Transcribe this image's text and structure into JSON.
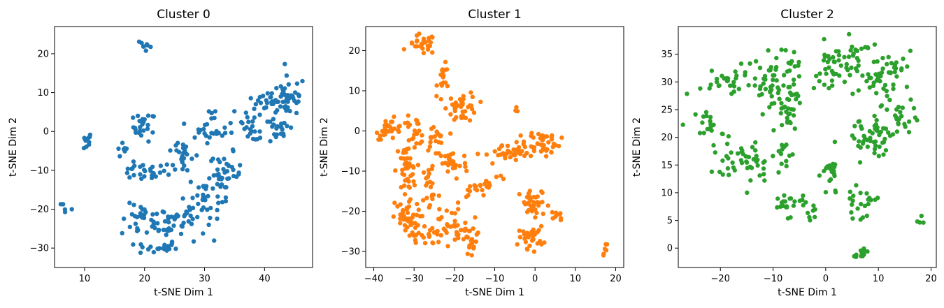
{
  "chart_data": [
    {
      "type": "scatter",
      "title": "Cluster 0",
      "xlabel": "t-SNE Dim 1",
      "ylabel": "t-SNE Dim 2",
      "xlim": [
        5,
        48
      ],
      "ylim": [
        -35,
        27
      ],
      "xticks": [
        10,
        20,
        30,
        40
      ],
      "yticks": [
        -30,
        -20,
        -10,
        0,
        10,
        20
      ],
      "grid": false,
      "color": "#1f77b4",
      "groups": [
        {
          "cx": 20.5,
          "cy": 22,
          "sx": 0.6,
          "sy": 1.5,
          "n": 8,
          "angle": 45
        },
        {
          "cx": 10.3,
          "cy": -2.5,
          "sx": 0.6,
          "sy": 1.5,
          "n": 10,
          "angle": 0
        },
        {
          "cx": 7,
          "cy": -18.5,
          "sx": 0.9,
          "sy": 1.0,
          "n": 5,
          "angle": 0
        },
        {
          "cx": 16.5,
          "cy": -5,
          "sx": 0.6,
          "sy": 1.2,
          "n": 7,
          "angle": 0
        },
        {
          "cx": 20,
          "cy": 1.2,
          "sx": 1.1,
          "sy": 2.2,
          "n": 24,
          "angle": 0
        },
        {
          "cx": 19.5,
          "cy": -10.5,
          "sx": 2.5,
          "sy": 1.3,
          "n": 26,
          "angle": 0
        },
        {
          "cx": 19.5,
          "cy": -23,
          "sx": 2.0,
          "sy": 2.5,
          "n": 28,
          "angle": 0
        },
        {
          "cx": 22,
          "cy": -30,
          "sx": 2.0,
          "sy": 1.0,
          "n": 20,
          "angle": 0
        },
        {
          "cx": 23.5,
          "cy": -23,
          "sx": 1.5,
          "sy": 2.5,
          "n": 20,
          "angle": 0
        },
        {
          "cx": 26.5,
          "cy": -6,
          "sx": 1.5,
          "sy": 3.5,
          "n": 26,
          "angle": 0
        },
        {
          "cx": 26.5,
          "cy": -23,
          "sx": 2.2,
          "sy": 3.0,
          "n": 28,
          "angle": 0
        },
        {
          "cx": 30,
          "cy": -17,
          "sx": 1.5,
          "sy": 4.0,
          "n": 28,
          "angle": 0
        },
        {
          "cx": 31.5,
          "cy": 1.5,
          "sx": 2.0,
          "sy": 2.5,
          "n": 26,
          "angle": 0
        },
        {
          "cx": 33.5,
          "cy": -11,
          "sx": 1.6,
          "sy": 3.2,
          "n": 38,
          "angle": 0
        },
        {
          "cx": 37.5,
          "cy": 0,
          "sx": 2.2,
          "sy": 1.3,
          "n": 16,
          "angle": 0
        },
        {
          "cx": 40,
          "cy": 6,
          "sx": 2.3,
          "sy": 2.3,
          "n": 30,
          "angle": 0
        },
        {
          "cx": 44,
          "cy": 9,
          "sx": 1.7,
          "sy": 3.0,
          "n": 45,
          "angle": 0
        },
        {
          "cx": 42,
          "cy": 0,
          "sx": 1.3,
          "sy": 2.0,
          "n": 20,
          "angle": 0
        }
      ]
    },
    {
      "type": "scatter",
      "title": "Cluster 1",
      "xlabel": "t-SNE Dim 1",
      "ylabel": "t-SNE Dim 2",
      "xlim": [
        -42,
        22
      ],
      "ylim": [
        -34,
        26
      ],
      "xticks": [
        -40,
        -30,
        -20,
        -10,
        0,
        10,
        20
      ],
      "yticks": [
        -30,
        -20,
        -10,
        0,
        10,
        20
      ],
      "grid": false,
      "color": "#ff7f0e",
      "groups": [
        {
          "cx": -28,
          "cy": 21.5,
          "sx": 2.0,
          "sy": 1.5,
          "n": 28,
          "angle": 0
        },
        {
          "cx": -22.5,
          "cy": 13,
          "sx": 1.0,
          "sy": 2.0,
          "n": 16,
          "angle": 0
        },
        {
          "cx": -18,
          "cy": 6,
          "sx": 2.2,
          "sy": 2.2,
          "n": 38,
          "angle": 0
        },
        {
          "cx": -36,
          "cy": 0.5,
          "sx": 2.0,
          "sy": 1.5,
          "n": 26,
          "angle": 0
        },
        {
          "cx": -30,
          "cy": 0,
          "sx": 2.0,
          "sy": 2.0,
          "n": 24,
          "angle": 0
        },
        {
          "cx": -25,
          "cy": -2,
          "sx": 1.5,
          "sy": 2.0,
          "n": 18,
          "angle": 0
        },
        {
          "cx": -32,
          "cy": -10,
          "sx": 1.5,
          "sy": 4.0,
          "n": 40,
          "angle": 0
        },
        {
          "cx": -21,
          "cy": -8,
          "sx": 2.5,
          "sy": 2.5,
          "n": 30,
          "angle": 0
        },
        {
          "cx": -26,
          "cy": -14,
          "sx": 1.2,
          "sy": 4.0,
          "n": 20,
          "angle": 0
        },
        {
          "cx": -13,
          "cy": -13.5,
          "sx": 4.0,
          "sy": 1.0,
          "n": 24,
          "angle": 20
        },
        {
          "cx": -8,
          "cy": -6,
          "sx": 2.5,
          "sy": 1.5,
          "n": 22,
          "angle": 0
        },
        {
          "cx": -4,
          "cy": -4,
          "sx": 1.5,
          "sy": 1.8,
          "n": 16,
          "angle": 0
        },
        {
          "cx": 2,
          "cy": -3,
          "sx": 2.5,
          "sy": 2.0,
          "n": 42,
          "angle": 0
        },
        {
          "cx": -4.8,
          "cy": 5.5,
          "sx": 0.5,
          "sy": 0.7,
          "n": 4,
          "angle": 0
        },
        {
          "cx": -32,
          "cy": -22,
          "sx": 2.0,
          "sy": 2.5,
          "n": 40,
          "angle": 0
        },
        {
          "cx": -27,
          "cy": -26,
          "sx": 2.5,
          "sy": 1.5,
          "n": 24,
          "angle": 0
        },
        {
          "cx": -21,
          "cy": -23,
          "sx": 1.6,
          "sy": 3.0,
          "n": 26,
          "angle": 0
        },
        {
          "cx": -16,
          "cy": -27,
          "sx": 1.6,
          "sy": 3.0,
          "n": 28,
          "angle": 0
        },
        {
          "cx": 0,
          "cy": -18.5,
          "sx": 2.2,
          "sy": 2.2,
          "n": 40,
          "angle": 0
        },
        {
          "cx": 5.5,
          "cy": -21,
          "sx": 0.8,
          "sy": 1.0,
          "n": 8,
          "angle": 0
        },
        {
          "cx": -1,
          "cy": -26.5,
          "sx": 1.8,
          "sy": 1.6,
          "n": 30,
          "angle": 0
        },
        {
          "cx": 17.5,
          "cy": -29.5,
          "sx": 0.4,
          "sy": 0.9,
          "n": 6,
          "angle": 0
        }
      ]
    },
    {
      "type": "scatter",
      "title": "Cluster 2",
      "xlabel": "t-SNE Dim 1",
      "ylabel": "t-SNE Dim 2",
      "xlim": [
        -28,
        21
      ],
      "ylim": [
        -3.5,
        40
      ],
      "xticks": [
        -20,
        -10,
        0,
        10,
        20
      ],
      "yticks": [
        0,
        5,
        10,
        15,
        20,
        25,
        30,
        35
      ],
      "grid": false,
      "color": "#2ca02c",
      "groups": [
        {
          "cx": -19,
          "cy": 30,
          "sx": 3.0,
          "sy": 1.5,
          "n": 30,
          "angle": 20
        },
        {
          "cx": -11,
          "cy": 29.5,
          "sx": 2.5,
          "sy": 2.0,
          "n": 30,
          "angle": 0
        },
        {
          "cx": -8,
          "cy": 33,
          "sx": 2.0,
          "sy": 2.0,
          "n": 20,
          "angle": 0
        },
        {
          "cx": -6,
          "cy": 27,
          "sx": 2.0,
          "sy": 2.0,
          "n": 20,
          "angle": 0
        },
        {
          "cx": -7,
          "cy": 23.5,
          "sx": 1.2,
          "sy": 1.5,
          "n": 16,
          "angle": 0
        },
        {
          "cx": -22,
          "cy": 22,
          "sx": 1.6,
          "sy": 2.0,
          "n": 20,
          "angle": 0
        },
        {
          "cx": -18,
          "cy": 16,
          "sx": 2.0,
          "sy": 1.5,
          "n": 22,
          "angle": 0
        },
        {
          "cx": -13,
          "cy": 15,
          "sx": 1.8,
          "sy": 2.0,
          "n": 22,
          "angle": 0
        },
        {
          "cx": -8,
          "cy": 17,
          "sx": 1.0,
          "sy": 1.8,
          "n": 14,
          "angle": 0
        },
        {
          "cx": -7,
          "cy": 8,
          "sx": 2.0,
          "sy": 1.3,
          "n": 24,
          "angle": 0
        },
        {
          "cx": -3,
          "cy": 6,
          "sx": 1.0,
          "sy": 0.8,
          "n": 6,
          "angle": 0
        },
        {
          "cx": 2,
          "cy": 32,
          "sx": 2.5,
          "sy": 3.0,
          "n": 46,
          "angle": 0
        },
        {
          "cx": 6,
          "cy": 35,
          "sx": 2.0,
          "sy": 1.5,
          "n": 12,
          "angle": 0
        },
        {
          "cx": 10,
          "cy": 31,
          "sx": 2.0,
          "sy": 2.5,
          "n": 30,
          "angle": 0
        },
        {
          "cx": 14,
          "cy": 32.5,
          "sx": 1.5,
          "sy": 1.6,
          "n": 16,
          "angle": 0
        },
        {
          "cx": 1,
          "cy": 13,
          "sx": 1.0,
          "sy": 2.5,
          "n": 22,
          "angle": 0
        },
        {
          "cx": 7,
          "cy": 20,
          "sx": 1.6,
          "sy": 2.5,
          "n": 24,
          "angle": 0
        },
        {
          "cx": 10,
          "cy": 19,
          "sx": 1.8,
          "sy": 3.0,
          "n": 20,
          "angle": 0
        },
        {
          "cx": 13.5,
          "cy": 23.5,
          "sx": 2.0,
          "sy": 2.5,
          "n": 30,
          "angle": 0
        },
        {
          "cx": 6.5,
          "cy": 8,
          "sx": 1.8,
          "sy": 1.5,
          "n": 22,
          "angle": 0
        },
        {
          "cx": 7,
          "cy": -0.8,
          "sx": 1.5,
          "sy": 0.5,
          "n": 14,
          "angle": 20
        },
        {
          "cx": 18.3,
          "cy": 5.5,
          "sx": 0.4,
          "sy": 0.7,
          "n": 4,
          "angle": 0
        }
      ]
    }
  ]
}
